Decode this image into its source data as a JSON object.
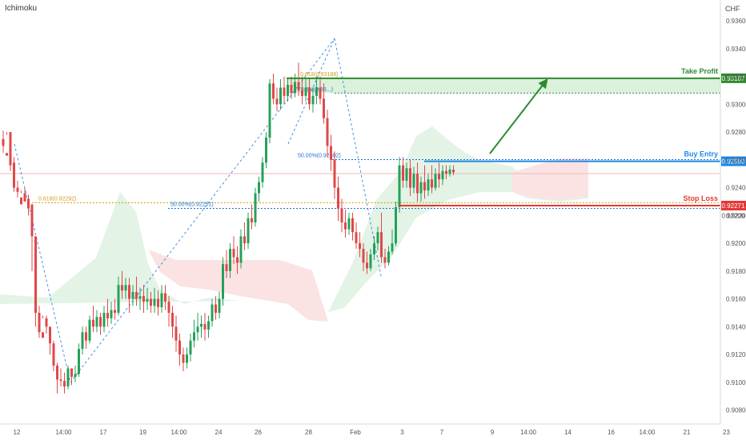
{
  "indicator_label": "Ichimoku",
  "currency_label": "CHF",
  "colors": {
    "up": "#26a05a",
    "down": "#e0484a",
    "take_profit": "#2e8b2e",
    "buy_entry": "#1e88e5",
    "stop_loss": "#e53935",
    "fib": "#1976d2",
    "fib_orange": "#d89a10",
    "cloud_green": "#e3f3e6",
    "cloud_red": "#fbe3e3"
  },
  "chart_data": {
    "type": "candlestick",
    "y_ticks": [
      "0.93600",
      "0.93400",
      "0.93200",
      "0.93000",
      "0.92800",
      "0.92600",
      "0.92400",
      "0.92200",
      "0.92000",
      "0.91800",
      "0.91600",
      "0.91400",
      "0.91200",
      "0.91000",
      "0.90800"
    ],
    "ylim": [
      0.907,
      0.9375
    ],
    "x_ticks": [
      {
        "label": "12",
        "i": 0
      },
      {
        "label": "14:00",
        "i": 13
      },
      {
        "label": "17",
        "i": 24
      },
      {
        "label": "19",
        "i": 35
      },
      {
        "label": "14:00",
        "i": 45
      },
      {
        "label": "24",
        "i": 56
      },
      {
        "label": "26",
        "i": 67
      },
      {
        "label": "28",
        "i": 81
      },
      {
        "label": "Feb",
        "i": 94
      },
      {
        "label": "3",
        "i": 107
      },
      {
        "label": "7",
        "i": 118
      },
      {
        "label": "9",
        "i": 132
      },
      {
        "label": "14:00",
        "i": 142
      },
      {
        "label": "14",
        "i": 153
      },
      {
        "label": "16",
        "i": 165
      },
      {
        "label": "14:00",
        "i": 175
      },
      {
        "label": "21",
        "i": 186
      },
      {
        "label": "23",
        "i": 197
      }
    ],
    "candles": [
      [
        0.9275,
        0.9281,
        0.927,
        0.9265
      ],
      [
        0.9265,
        0.928,
        0.9263,
        0.9278
      ],
      [
        0.928,
        0.928,
        0.9256,
        0.9252
      ],
      [
        0.9258,
        0.9262,
        0.924,
        0.9237
      ],
      [
        0.924,
        0.9245,
        0.9237,
        0.9233
      ],
      [
        0.9233,
        0.9238,
        0.9228,
        0.9236
      ],
      [
        0.9236,
        0.924,
        0.923,
        0.9232
      ],
      [
        0.9232,
        0.9235,
        0.9225,
        0.922
      ],
      [
        0.9228,
        0.9228,
        0.9205,
        0.918
      ],
      [
        0.9205,
        0.9205,
        0.915,
        0.914
      ],
      [
        0.915,
        0.9155,
        0.9136,
        0.9132
      ],
      [
        0.9136,
        0.9148,
        0.9132,
        0.9146
      ],
      [
        0.9146,
        0.9148,
        0.914,
        0.9135
      ],
      [
        0.914,
        0.914,
        0.9128,
        0.912
      ],
      [
        0.9128,
        0.913,
        0.9112,
        0.9108
      ],
      [
        0.9112,
        0.9114,
        0.9102,
        0.9092
      ],
      [
        0.9102,
        0.911,
        0.9101,
        0.9097
      ],
      [
        0.9101,
        0.9107,
        0.9097,
        0.9092
      ],
      [
        0.9097,
        0.9112,
        0.911,
        0.9095
      ],
      [
        0.911,
        0.911,
        0.9104,
        0.9098
      ],
      [
        0.9104,
        0.9112,
        0.9106,
        0.91
      ],
      [
        0.9106,
        0.9128,
        0.9124,
        0.9104
      ],
      [
        0.9124,
        0.914,
        0.9136,
        0.912
      ],
      [
        0.9136,
        0.914,
        0.913,
        0.9124
      ],
      [
        0.913,
        0.9148,
        0.9145,
        0.9128
      ],
      [
        0.9145,
        0.9155,
        0.914,
        0.9136
      ],
      [
        0.914,
        0.9152,
        0.9147,
        0.9136
      ],
      [
        0.9147,
        0.915,
        0.914,
        0.9134
      ],
      [
        0.914,
        0.9155,
        0.915,
        0.9136
      ],
      [
        0.915,
        0.916,
        0.9146,
        0.914
      ],
      [
        0.9146,
        0.9158,
        0.9152,
        0.9142
      ],
      [
        0.9152,
        0.916,
        0.915,
        0.9145
      ],
      [
        0.915,
        0.9176,
        0.917,
        0.9148
      ],
      [
        0.917,
        0.918,
        0.9166,
        0.916
      ],
      [
        0.9166,
        0.9175,
        0.917,
        0.916
      ],
      [
        0.917,
        0.9175,
        0.916,
        0.915
      ],
      [
        0.916,
        0.917,
        0.9165,
        0.9155
      ],
      [
        0.9165,
        0.9176,
        0.916,
        0.9155
      ],
      [
        0.916,
        0.9168,
        0.9162,
        0.9152
      ],
      [
        0.9162,
        0.917,
        0.9158,
        0.915
      ],
      [
        0.9158,
        0.9168,
        0.916,
        0.9152
      ],
      [
        0.916,
        0.9165,
        0.9155,
        0.915
      ],
      [
        0.9155,
        0.9168,
        0.916,
        0.915
      ],
      [
        0.916,
        0.9166,
        0.9154,
        0.9148
      ],
      [
        0.9154,
        0.917,
        0.9164,
        0.915
      ],
      [
        0.9164,
        0.917,
        0.9158,
        0.9152
      ],
      [
        0.9158,
        0.9162,
        0.915,
        0.914
      ],
      [
        0.915,
        0.9155,
        0.914,
        0.9132
      ],
      [
        0.914,
        0.9148,
        0.913,
        0.9122
      ],
      [
        0.913,
        0.9135,
        0.912,
        0.9112
      ],
      [
        0.912,
        0.9125,
        0.9114,
        0.9108
      ],
      [
        0.9114,
        0.9125,
        0.912,
        0.911
      ],
      [
        0.912,
        0.9135,
        0.913,
        0.9115
      ],
      [
        0.913,
        0.9145,
        0.9136,
        0.9125
      ],
      [
        0.9136,
        0.915,
        0.914,
        0.913
      ],
      [
        0.914,
        0.9148,
        0.9142,
        0.9132
      ],
      [
        0.9142,
        0.915,
        0.9138,
        0.913
      ],
      [
        0.9138,
        0.9148,
        0.9144,
        0.9132
      ],
      [
        0.9144,
        0.916,
        0.9156,
        0.914
      ],
      [
        0.9156,
        0.9162,
        0.915,
        0.9145
      ],
      [
        0.915,
        0.9165,
        0.916,
        0.9146
      ],
      [
        0.916,
        0.919,
        0.9185,
        0.9155
      ],
      [
        0.9185,
        0.9195,
        0.918,
        0.9175
      ],
      [
        0.918,
        0.92,
        0.9196,
        0.9175
      ],
      [
        0.9196,
        0.9205,
        0.919,
        0.9185
      ],
      [
        0.919,
        0.9198,
        0.9186,
        0.9178
      ],
      [
        0.9186,
        0.921,
        0.9205,
        0.9182
      ],
      [
        0.9205,
        0.9215,
        0.92,
        0.9195
      ],
      [
        0.92,
        0.9222,
        0.9218,
        0.9196
      ],
      [
        0.9218,
        0.9228,
        0.9215,
        0.921
      ],
      [
        0.9215,
        0.924,
        0.9236,
        0.9212
      ],
      [
        0.9236,
        0.9248,
        0.9244,
        0.923
      ],
      [
        0.9244,
        0.9262,
        0.9258,
        0.924
      ],
      [
        0.9258,
        0.928,
        0.9276,
        0.9254
      ],
      [
        0.9276,
        0.9318,
        0.9315,
        0.9272
      ],
      [
        0.9315,
        0.9322,
        0.9304,
        0.93
      ],
      [
        0.9304,
        0.9312,
        0.93,
        0.9295
      ],
      [
        0.93,
        0.9318,
        0.9312,
        0.9296
      ],
      [
        0.9312,
        0.932,
        0.9306,
        0.93
      ],
      [
        0.9306,
        0.9318,
        0.9314,
        0.9302
      ],
      [
        0.9314,
        0.932,
        0.9308,
        0.9304
      ],
      [
        0.9308,
        0.9322,
        0.9316,
        0.9305
      ],
      [
        0.9316,
        0.933,
        0.931,
        0.9306
      ],
      [
        0.931,
        0.932,
        0.9306,
        0.93
      ],
      [
        0.9306,
        0.9318,
        0.9312,
        0.9302
      ],
      [
        0.9312,
        0.9319,
        0.93,
        0.9296
      ],
      [
        0.93,
        0.9312,
        0.9306,
        0.9294
      ],
      [
        0.9306,
        0.932,
        0.9312,
        0.93
      ],
      [
        0.9312,
        0.932,
        0.9304,
        0.93
      ],
      [
        0.9304,
        0.9315,
        0.929,
        0.9286
      ],
      [
        0.929,
        0.9296,
        0.927,
        0.9262
      ],
      [
        0.927,
        0.9278,
        0.926,
        0.9252
      ],
      [
        0.926,
        0.9266,
        0.924,
        0.9232
      ],
      [
        0.924,
        0.9248,
        0.9225,
        0.9216
      ],
      [
        0.9225,
        0.9232,
        0.9215,
        0.9208
      ],
      [
        0.9215,
        0.9224,
        0.921,
        0.9204
      ],
      [
        0.921,
        0.9222,
        0.9218,
        0.9206
      ],
      [
        0.9218,
        0.9222,
        0.9208,
        0.9202
      ],
      [
        0.9208,
        0.9215,
        0.92,
        0.9196
      ],
      [
        0.92,
        0.9208,
        0.9196,
        0.919
      ],
      [
        0.9196,
        0.92,
        0.9186,
        0.918
      ],
      [
        0.9186,
        0.9194,
        0.9182,
        0.9178
      ],
      [
        0.9182,
        0.9196,
        0.9192,
        0.918
      ],
      [
        0.9192,
        0.9205,
        0.92,
        0.9188
      ],
      [
        0.92,
        0.9212,
        0.9208,
        0.9195
      ],
      [
        0.9208,
        0.9222,
        0.919,
        0.9186
      ],
      [
        0.919,
        0.9196,
        0.9186,
        0.9182
      ],
      [
        0.9186,
        0.9198,
        0.9194,
        0.9184
      ],
      [
        0.9194,
        0.921,
        0.92,
        0.9192
      ],
      [
        0.92,
        0.923,
        0.9226,
        0.9198
      ],
      [
        0.9226,
        0.9262,
        0.9256,
        0.9222
      ],
      [
        0.9256,
        0.9262,
        0.9245,
        0.924
      ],
      [
        0.9245,
        0.9258,
        0.9254,
        0.924
      ],
      [
        0.9254,
        0.926,
        0.924,
        0.9234
      ],
      [
        0.924,
        0.9255,
        0.925,
        0.9236
      ],
      [
        0.925,
        0.9258,
        0.9236,
        0.923
      ],
      [
        0.9236,
        0.9248,
        0.9244,
        0.923
      ],
      [
        0.9244,
        0.9256,
        0.9238,
        0.9232
      ],
      [
        0.9238,
        0.925,
        0.9246,
        0.9234
      ],
      [
        0.9246,
        0.9256,
        0.924,
        0.9236
      ],
      [
        0.924,
        0.9254,
        0.925,
        0.9238
      ],
      [
        0.925,
        0.9258,
        0.9246,
        0.924
      ],
      [
        0.9246,
        0.9256,
        0.9252,
        0.9242
      ],
      [
        0.9252,
        0.9256,
        0.925,
        0.9246
      ],
      [
        0.925,
        0.9256,
        0.9253,
        0.9248
      ],
      [
        0.9253,
        0.9256,
        0.9251,
        0.9249
      ]
    ],
    "fib_levels": [
      {
        "label": "0.618(0.92292)",
        "value": 0.92292
      },
      {
        "label": "50.00%(0.92251)",
        "value": 0.92251
      },
      {
        "label": "50.00%(0.92602)",
        "value": 0.92602
      },
      {
        "label": "0.618(0.93188)",
        "value": 0.93188
      },
      {
        "label": "78.6%(0.93...)",
        "value": 0.9312
      }
    ],
    "trade_levels": {
      "take_profit": {
        "label": "Take Profit",
        "value_label": "0.93187",
        "value": 0.93187
      },
      "buy_entry": {
        "label": "Buy Entry",
        "value_label": "0.92590",
        "value": 0.9259
      },
      "stop_loss": {
        "label": "Stop Loss",
        "value_label": "0.92271",
        "value": 0.92271
      }
    },
    "current_price_label": "0.92200"
  }
}
